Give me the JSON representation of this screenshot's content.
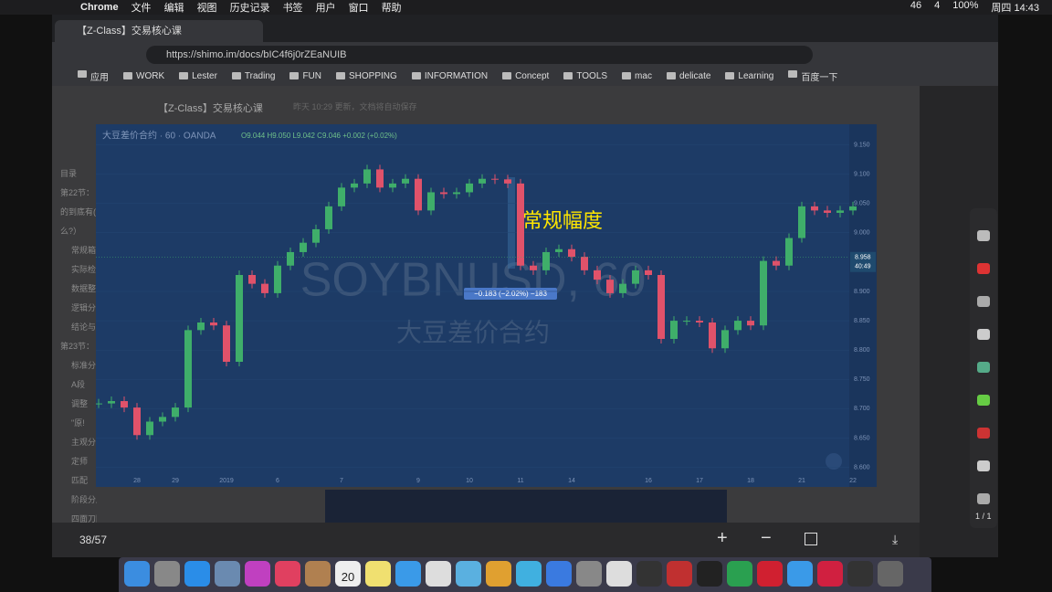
{
  "menu_bar": {
    "items": [
      "Chrome",
      "文件",
      "编辑",
      "视图",
      "历史记录",
      "书签",
      "用户",
      "窗口",
      "帮助"
    ],
    "status": [
      "46",
      "4",
      "100%",
      "周四 14:43"
    ]
  },
  "browser": {
    "tab_title": "【Z-Class】交易核心课",
    "url": "https://shimo.im/docs/bIC4f6j0rZEaNUIB",
    "bookmarks": [
      "应用",
      "WORK",
      "Lester",
      "Trading",
      "FUN",
      "SHOPPING",
      "INFORMATION",
      "Concept",
      "TOOLS",
      "mac",
      "delicate",
      "Learning",
      "百度一下"
    ]
  },
  "document": {
    "title": "【Z-Class】交易核心课",
    "status": "昨天 10:29 更新，文档将自动保存",
    "outline": [
      "目录",
      "第22节：",
      "的到底有(",
      "么?）",
      "常规箱",
      "实际检",
      "数据整",
      "逻辑分",
      "结论与",
      "第23节：",
      "标准分",
      "A段",
      "调整",
      "\"原!",
      "主观分",
      "定师",
      "匹配",
      "阶段分用",
      "四面刀图"
    ]
  },
  "viewer": {
    "page": "38/57",
    "zoom_page": "1 / 1",
    "calendar_day": "20"
  },
  "chart_data": {
    "type": "candlestick",
    "symbol": "大豆差价合约 · 60 · OANDA",
    "ohlc": "O9.044 H9.050 L9.042 C9.046 +0.002 (+0.02%)",
    "watermark": "SOYBNUSD, 60",
    "watermark_name": "大豆差价合约",
    "annotation": "常规幅度",
    "measure_label": "−0.183 (−2.02%) −183",
    "last_price": {
      "value": 8.958,
      "label": "8.958"
    },
    "countdown": "40:49",
    "up_color": "#3fae6a",
    "down_color": "#e0526a",
    "categories": [
      null,
      null,
      null,
      "28",
      null,
      null,
      "29",
      null,
      null,
      null,
      "2019",
      null,
      null,
      null,
      "6",
      null,
      null,
      null,
      null,
      "7",
      null,
      null,
      null,
      null,
      null,
      "9",
      null,
      null,
      null,
      "10",
      null,
      null,
      null,
      "11",
      null,
      null,
      null,
      "14",
      null,
      null,
      null,
      null,
      null,
      "16",
      null,
      null,
      null,
      "17",
      null,
      null,
      null,
      "18",
      null,
      null,
      null,
      "21",
      null,
      null,
      null,
      "22"
    ],
    "values": [
      8.709,
      8.713,
      8.702,
      8.655,
      8.678,
      8.686,
      8.702,
      8.834,
      8.847,
      8.842,
      8.78,
      8.928,
      8.913,
      8.897,
      8.944,
      8.967,
      8.983,
      9.006,
      9.045,
      9.077,
      9.084,
      9.108,
      9.077,
      9.084,
      9.092,
      9.038,
      9.069,
      9.066,
      9.069,
      9.084,
      9.092,
      9.091,
      9.084,
      8.944,
      8.936,
      8.967,
      8.972,
      8.959,
      8.936,
      8.92,
      8.897,
      8.913,
      8.936,
      8.928,
      8.819,
      8.85,
      8.85,
      8.847,
      8.803,
      8.834,
      8.85,
      8.842,
      8.952,
      8.944,
      8.991,
      9.045,
      9.038,
      9.034,
      9.038,
      9.045
    ],
    "ylim": [
      8.59,
      9.185
    ],
    "yticks": [
      {
        "value": 9.15,
        "label": "9.150"
      },
      {
        "value": 9.1,
        "label": "9.100"
      },
      {
        "value": 9.05,
        "label": "9.050"
      },
      {
        "value": 9.0,
        "label": "9.000"
      },
      {
        "value": 8.9,
        "label": "8.900"
      },
      {
        "value": 8.85,
        "label": "8.850"
      },
      {
        "value": 8.8,
        "label": "8.800"
      },
      {
        "value": 8.75,
        "label": "8.750"
      },
      {
        "value": 8.7,
        "label": "8.700"
      },
      {
        "value": 8.65,
        "label": "8.650"
      },
      {
        "value": 8.6,
        "label": "8.600"
      }
    ]
  }
}
